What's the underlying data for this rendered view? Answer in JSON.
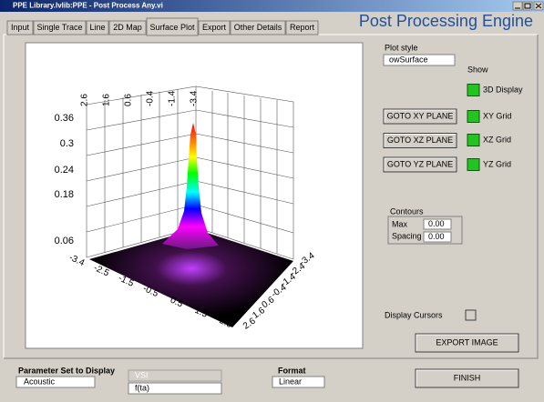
{
  "window": {
    "title": "PPE Library.lvlib:PPE - Post Process Any.vi"
  },
  "header": {
    "title": "Post Processing Engine"
  },
  "tabs": [
    "Input",
    "Single Trace",
    "Line",
    "2D Map",
    "Surface Plot",
    "Export",
    "Other Details",
    "Report"
  ],
  "plot": {
    "z_ticks": [
      "0.36",
      "0.3",
      "0.24",
      "0.18",
      "0.06"
    ],
    "top_ticks": [
      "2.6",
      "1.6",
      "0.6",
      "-0.4",
      "-1.4",
      "-3.4"
    ],
    "left_ticks": [
      "-3.4",
      "-2.5",
      "-1.5",
      "-0.5",
      "0.5",
      "1.5",
      "2.5"
    ],
    "right_ticks": [
      "-3.4",
      "-2.4",
      "-1.4",
      "-0.4",
      "0.6",
      "1.6",
      "2.6"
    ]
  },
  "controls": {
    "plot_style": {
      "label": "Plot style",
      "value": "owSurface"
    },
    "show_label": "Show",
    "leds": [
      "3D Display",
      "XY Grid",
      "XZ Grid",
      "YZ Grid"
    ],
    "buttons": [
      "GOTO XY PLANE",
      "GOTO XZ PLANE",
      "GOTO YZ PLANE"
    ],
    "contours": {
      "label": "Contours",
      "max_label": "Max",
      "max_value": "0.00",
      "spacing_label": "Spacing",
      "spacing_value": "0.00"
    },
    "display_cursors": "Display Cursors",
    "export_button": "EXPORT IMAGE",
    "parameter_set": {
      "label": "Parameter Set to Display",
      "value": "Acoustic"
    },
    "vsi": "VSI",
    "function": "f(ta)",
    "format": {
      "label": "Format",
      "value": "Linear"
    },
    "finish_button": "FINISH"
  }
}
